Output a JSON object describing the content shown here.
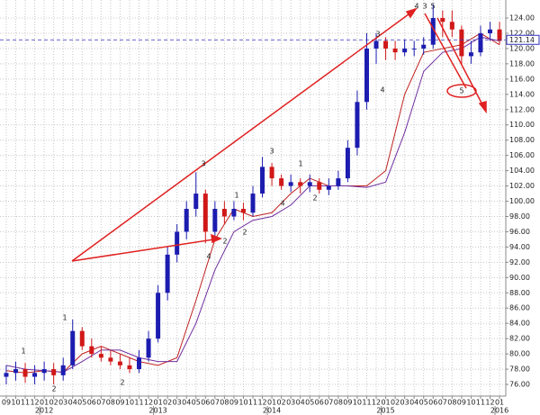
{
  "chart_data": {
    "type": "candlestick",
    "x": [
      0,
      1,
      2,
      3,
      4,
      5,
      6,
      7,
      8,
      9,
      10,
      11,
      12,
      13,
      14,
      15,
      16,
      17,
      18,
      19,
      20,
      21,
      22,
      23,
      24,
      25,
      26,
      27,
      28,
      29,
      30,
      31,
      32,
      33,
      34,
      35,
      36,
      37,
      38,
      39,
      40,
      41,
      42,
      43,
      44,
      45,
      46,
      47,
      48,
      49,
      50,
      51,
      52
    ],
    "open": [
      77,
      77.5,
      78,
      77,
      77.5,
      78,
      77.2,
      78.5,
      83,
      81,
      80,
      79.5,
      79,
      78.5,
      78,
      79.5,
      82,
      88,
      93,
      96,
      99,
      101,
      96,
      99,
      98,
      99,
      98.5,
      101,
      104.5,
      103,
      102,
      102.5,
      102,
      102.5,
      101.5,
      102,
      103,
      107,
      113,
      120,
      121,
      120,
      119.5,
      120,
      120,
      120.5,
      124,
      123.5,
      122.5,
      119,
      119.5,
      122,
      122.5
    ],
    "high": [
      78.5,
      79,
      78.8,
      78.5,
      79,
      78.8,
      79.5,
      84.5,
      83.5,
      82,
      81,
      80.5,
      80,
      79.5,
      80.5,
      83,
      89,
      94,
      97,
      100,
      103.8,
      101.5,
      100,
      100,
      100,
      99.8,
      102,
      105.8,
      105,
      103.5,
      103.5,
      103,
      103.5,
      103,
      103,
      104,
      108,
      114.5,
      122,
      122,
      121.5,
      121,
      121.2,
      121,
      121.5,
      125.8,
      125,
      125,
      123,
      121,
      123,
      123.5,
      123.5
    ],
    "low": [
      76,
      76.5,
      76.2,
      76,
      76.5,
      76,
      76.5,
      78,
      80.5,
      79.5,
      79,
      78.5,
      78,
      77.5,
      77.5,
      79,
      81.5,
      87,
      92,
      95,
      98,
      94.5,
      95.5,
      97,
      97.5,
      97.5,
      98,
      100.5,
      102,
      101.5,
      101.2,
      101,
      101.2,
      101,
      100.8,
      101.5,
      102.5,
      106,
      112,
      118,
      118.5,
      118.5,
      119,
      119,
      119.2,
      120,
      121.5,
      121.5,
      118,
      118,
      119,
      121,
      120.5
    ],
    "close": [
      77.5,
      78,
      77,
      77.5,
      78,
      77.2,
      78.5,
      83,
      81,
      80,
      79.5,
      79,
      78.5,
      78,
      79.5,
      82,
      88,
      93,
      96,
      99,
      101,
      96,
      99,
      98,
      99,
      98.5,
      101,
      104.5,
      103,
      102,
      102.5,
      102,
      102.5,
      101.5,
      102,
      103,
      107,
      113,
      120,
      121,
      120,
      119.5,
      120,
      120,
      120.5,
      124,
      123.5,
      122.5,
      119,
      119.5,
      122,
      122.5,
      121
    ],
    "up_color": "#1c1cb0",
    "down_color": "#d01818",
    "lines": [
      {
        "color": "#c02020",
        "x": [
          0,
          2,
          4,
          6,
          8,
          10,
          12,
          14,
          16,
          18,
          20,
          22,
          24,
          26,
          28,
          30,
          32,
          34,
          36,
          38,
          40,
          42,
          44,
          46,
          48,
          50,
          52
        ],
        "values": [
          77.8,
          77.5,
          77.8,
          77.6,
          80,
          81,
          80,
          79,
          78.5,
          79.5,
          87,
          95,
          99,
          98,
          98.5,
          101,
          103,
          102,
          102,
          102,
          104,
          114,
          119.5,
          120,
          120.5,
          122,
          120.5
        ]
      },
      {
        "color": "#7030a0",
        "x": [
          0,
          2,
          4,
          6,
          8,
          10,
          12,
          14,
          16,
          18,
          20,
          22,
          24,
          26,
          28,
          30,
          32,
          34,
          36,
          38,
          40,
          42,
          44,
          46,
          48,
          50,
          52
        ],
        "values": [
          78.5,
          78,
          77.8,
          77.6,
          79,
          80.5,
          80.5,
          79.5,
          79,
          79,
          84,
          91,
          96,
          97.5,
          98,
          99.5,
          102,
          102,
          102,
          101.8,
          102.5,
          109,
          117,
          119.5,
          120,
          121.5,
          121
        ]
      }
    ],
    "last_price": 121.14,
    "xlim": [
      -0.66,
      52.66
    ],
    "ylim": [
      74.47,
      126.36
    ],
    "grid": true,
    "yticks": [
      {
        "value": 76,
        "label": "76.00"
      },
      {
        "value": 78,
        "label": "78.00"
      },
      {
        "value": 80,
        "label": "80.00"
      },
      {
        "value": 82,
        "label": "82.00"
      },
      {
        "value": 84,
        "label": "84.00"
      },
      {
        "value": 86,
        "label": "86.00"
      },
      {
        "value": 88,
        "label": "88.00"
      },
      {
        "value": 90,
        "label": "90.00"
      },
      {
        "value": 92,
        "label": "92.00"
      },
      {
        "value": 94,
        "label": "94.00"
      },
      {
        "value": 96,
        "label": "96.00"
      },
      {
        "value": 98,
        "label": "98.00"
      },
      {
        "value": 100,
        "label": "100.00"
      },
      {
        "value": 102,
        "label": "102.00"
      },
      {
        "value": 104,
        "label": "104.00"
      },
      {
        "value": 106,
        "label": "106.00"
      },
      {
        "value": 108,
        "label": "108.00"
      },
      {
        "value": 110,
        "label": "110.00"
      },
      {
        "value": 112,
        "label": "112.00"
      },
      {
        "value": 114,
        "label": "114.00"
      },
      {
        "value": 116,
        "label": "116.00"
      },
      {
        "value": 118,
        "label": "118.00"
      },
      {
        "value": 120,
        "label": "120.00"
      },
      {
        "value": 122,
        "label": "122.00"
      },
      {
        "value": 124,
        "label": "124.00"
      }
    ],
    "xticks": [
      {
        "value": 0,
        "label": "09"
      },
      {
        "value": 1,
        "label": "10"
      },
      {
        "value": 2,
        "label": "11"
      },
      {
        "value": 3,
        "label": "12"
      },
      {
        "value": 4,
        "label": "01"
      },
      {
        "value": 5,
        "label": "02"
      },
      {
        "value": 6,
        "label": "03"
      },
      {
        "value": 7,
        "label": "04"
      },
      {
        "value": 8,
        "label": "05"
      },
      {
        "value": 9,
        "label": "06"
      },
      {
        "value": 10,
        "label": "07"
      },
      {
        "value": 11,
        "label": "08"
      },
      {
        "value": 12,
        "label": "09"
      },
      {
        "value": 13,
        "label": "10"
      },
      {
        "value": 14,
        "label": "11"
      },
      {
        "value": 15,
        "label": "12"
      },
      {
        "value": 16,
        "label": "01"
      },
      {
        "value": 17,
        "label": "02"
      },
      {
        "value": 18,
        "label": "03"
      },
      {
        "value": 19,
        "label": "04"
      },
      {
        "value": 20,
        "label": "05"
      },
      {
        "value": 21,
        "label": "06"
      },
      {
        "value": 22,
        "label": "07"
      },
      {
        "value": 23,
        "label": "08"
      },
      {
        "value": 24,
        "label": "09"
      },
      {
        "value": 25,
        "label": "10"
      },
      {
        "value": 26,
        "label": "11"
      },
      {
        "value": 27,
        "label": "12"
      },
      {
        "value": 28,
        "label": "01"
      },
      {
        "value": 29,
        "label": "02"
      },
      {
        "value": 30,
        "label": "03"
      },
      {
        "value": 31,
        "label": "04"
      },
      {
        "value": 32,
        "label": "05"
      },
      {
        "value": 33,
        "label": "06"
      },
      {
        "value": 34,
        "label": "07"
      },
      {
        "value": 35,
        "label": "08"
      },
      {
        "value": 36,
        "label": "09"
      },
      {
        "value": 37,
        "label": "10"
      },
      {
        "value": 38,
        "label": "11"
      },
      {
        "value": 39,
        "label": "12"
      },
      {
        "value": 40,
        "label": "01"
      },
      {
        "value": 41,
        "label": "02"
      },
      {
        "value": 42,
        "label": "03"
      },
      {
        "value": 43,
        "label": "04"
      },
      {
        "value": 44,
        "label": "05"
      },
      {
        "value": 45,
        "label": "06"
      },
      {
        "value": 46,
        "label": "07"
      },
      {
        "value": 47,
        "label": "08"
      },
      {
        "value": 48,
        "label": "09"
      },
      {
        "value": 49,
        "label": "10"
      },
      {
        "value": 50,
        "label": "11"
      },
      {
        "value": 51,
        "label": "12"
      },
      {
        "value": 52,
        "label": "01"
      }
    ],
    "year_ticks": [
      {
        "value": 4,
        "label": "2012"
      },
      {
        "value": 16,
        "label": "2013"
      },
      {
        "value": 28,
        "label": "2014"
      },
      {
        "value": 40,
        "label": "2015"
      },
      {
        "value": 52,
        "label": "2016"
      }
    ],
    "annotations": [
      {
        "text": "1",
        "color": "#d01818"
      },
      {
        "text": "2",
        "color": "#d01818"
      },
      {
        "text": "1",
        "color": "#3030c0"
      },
      {
        "text": "2",
        "color": "#3030c0"
      },
      {
        "text": "3",
        "color": "#3030c0"
      },
      {
        "text": "4",
        "color": "#3030c0"
      },
      {
        "text": "2",
        "color": "#d01818"
      },
      {
        "text": "1",
        "color": "#d01818"
      },
      {
        "text": "2",
        "color": "#3030c0"
      },
      {
        "text": "3",
        "color": "#3030c0"
      },
      {
        "text": "4",
        "color": "#3030c0"
      },
      {
        "text": "1",
        "color": "#d01818"
      },
      {
        "text": "2",
        "color": "#d01818"
      },
      {
        "text": "3",
        "color": "#d01818"
      },
      {
        "text": "4",
        "color": "#d01818"
      },
      {
        "text": "3",
        "color": "#d01818"
      },
      {
        "text": "5",
        "color": "#3030c0"
      },
      {
        "text": "5",
        "color": "#d01818"
      },
      {
        "text": "4",
        "color": "#d01818"
      }
    ]
  }
}
